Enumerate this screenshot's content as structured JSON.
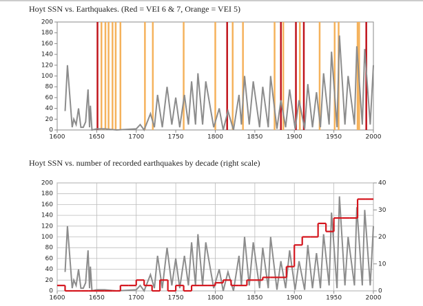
{
  "chart_data": [
    {
      "type": "line",
      "title": "Hoyt SSN vs. Earthquakes. (Red = VEI 6 & 7, Orange = VEI 5)",
      "x": [
        1610,
        1613,
        1619,
        1621,
        1624,
        1627,
        1630,
        1633,
        1636,
        1639,
        1641,
        1642,
        1644,
        1650,
        1660,
        1675,
        1700,
        1705,
        1710,
        1718,
        1723,
        1727,
        1733,
        1739,
        1745,
        1750,
        1755,
        1761,
        1766,
        1770,
        1775,
        1778,
        1784,
        1788,
        1798,
        1805,
        1810,
        1816,
        1823,
        1830,
        1833,
        1837,
        1843,
        1848,
        1856,
        1860,
        1867,
        1870,
        1878,
        1883,
        1889,
        1894,
        1901,
        1906,
        1913,
        1917,
        1923,
        1928,
        1933,
        1937,
        1944,
        1947,
        1954,
        1957,
        1964,
        1968,
        1976,
        1979,
        1986,
        1989,
        1996,
        2000
      ],
      "series": [
        {
          "color": "#8c8c8c",
          "values": [
            35,
            120,
            5,
            20,
            10,
            40,
            5,
            5,
            15,
            75,
            5,
            45,
            0,
            2,
            2,
            0,
            2,
            10,
            0,
            30,
            5,
            65,
            5,
            80,
            10,
            60,
            5,
            65,
            10,
            90,
            10,
            105,
            10,
            90,
            5,
            40,
            0,
            35,
            0,
            65,
            10,
            100,
            10,
            90,
            5,
            80,
            5,
            100,
            2,
            55,
            5,
            75,
            2,
            55,
            2,
            85,
            5,
            70,
            5,
            105,
            10,
            145,
            5,
            175,
            10,
            100,
            10,
            155,
            10,
            150,
            10,
            120
          ]
        }
      ],
      "event_lines": [
        {
          "color": "#f5b25c",
          "x": [
            1656,
            1661,
            1665,
            1670,
            1674,
            1680,
            1711,
            1721,
            1760,
            1800,
            1822,
            1835,
            1875,
            1886,
            1907,
            1932,
            1951,
            1956,
            1980,
            1982
          ]
        },
        {
          "color": "#c0141c",
          "x": [
            1651,
            1815,
            1883,
            1902,
            1912,
            1991
          ]
        }
      ],
      "xlim": [
        1600,
        2000
      ],
      "xticks": [
        1600,
        1650,
        1700,
        1750,
        1800,
        1850,
        1900,
        1950,
        2000
      ],
      "ylim": [
        0,
        200
      ],
      "yticks": [
        0,
        20,
        40,
        60,
        80,
        100,
        120,
        140,
        160,
        180,
        200
      ],
      "grid": false
    },
    {
      "type": "line",
      "title": "Hoyt SSN vs. number of recorded earthquakes by decade (right scale)",
      "x": [
        1610,
        1613,
        1619,
        1621,
        1624,
        1627,
        1630,
        1633,
        1636,
        1639,
        1641,
        1642,
        1644,
        1650,
        1660,
        1675,
        1700,
        1705,
        1710,
        1718,
        1723,
        1727,
        1733,
        1739,
        1745,
        1750,
        1755,
        1761,
        1766,
        1770,
        1775,
        1778,
        1784,
        1788,
        1798,
        1805,
        1810,
        1816,
        1823,
        1830,
        1833,
        1837,
        1843,
        1848,
        1856,
        1860,
        1867,
        1870,
        1878,
        1883,
        1889,
        1894,
        1901,
        1906,
        1913,
        1917,
        1923,
        1928,
        1933,
        1937,
        1944,
        1947,
        1954,
        1957,
        1964,
        1968,
        1976,
        1979,
        1986,
        1989,
        1996,
        2000
      ],
      "series": [
        {
          "color": "#8c8c8c",
          "values": [
            35,
            120,
            5,
            20,
            10,
            40,
            5,
            5,
            15,
            75,
            5,
            45,
            0,
            2,
            2,
            0,
            2,
            10,
            0,
            30,
            5,
            65,
            5,
            80,
            10,
            60,
            5,
            65,
            10,
            90,
            10,
            105,
            10,
            90,
            5,
            40,
            0,
            35,
            0,
            65,
            10,
            100,
            10,
            90,
            5,
            80,
            5,
            100,
            2,
            55,
            5,
            75,
            2,
            55,
            2,
            85,
            5,
            70,
            5,
            105,
            10,
            145,
            5,
            175,
            10,
            100,
            10,
            155,
            10,
            150,
            10,
            120
          ]
        },
        {
          "color": "#d4141c",
          "axis": "y2",
          "step": true,
          "x": [
            1600,
            1610,
            1620,
            1630,
            1640,
            1650,
            1660,
            1670,
            1680,
            1690,
            1700,
            1710,
            1720,
            1730,
            1740,
            1750,
            1760,
            1770,
            1780,
            1790,
            1800,
            1810,
            1820,
            1830,
            1840,
            1850,
            1860,
            1870,
            1880,
            1890,
            1900,
            1910,
            1920,
            1930,
            1940,
            1950,
            1960,
            1970,
            1980,
            1990
          ],
          "values": [
            2,
            0,
            0,
            0,
            0,
            0,
            0,
            0,
            2,
            2,
            4,
            2,
            0,
            4,
            0,
            2,
            0,
            2,
            2,
            2,
            3,
            4,
            2,
            2,
            4,
            4,
            5,
            5,
            5,
            9,
            17,
            20,
            20,
            25,
            22,
            27,
            27,
            27,
            34,
            34
          ]
        }
      ],
      "xlim": [
        1600,
        2000
      ],
      "xticks": [
        1600,
        1650,
        1700,
        1750,
        1800,
        1850,
        1900,
        1950,
        2000
      ],
      "ylim": [
        0,
        200
      ],
      "yticks": [
        0,
        20,
        40,
        60,
        80,
        100,
        120,
        140,
        160,
        180,
        200
      ],
      "y2lim": [
        0,
        40
      ],
      "y2ticks": [
        0,
        10,
        20,
        30,
        40
      ],
      "grid": true
    }
  ]
}
